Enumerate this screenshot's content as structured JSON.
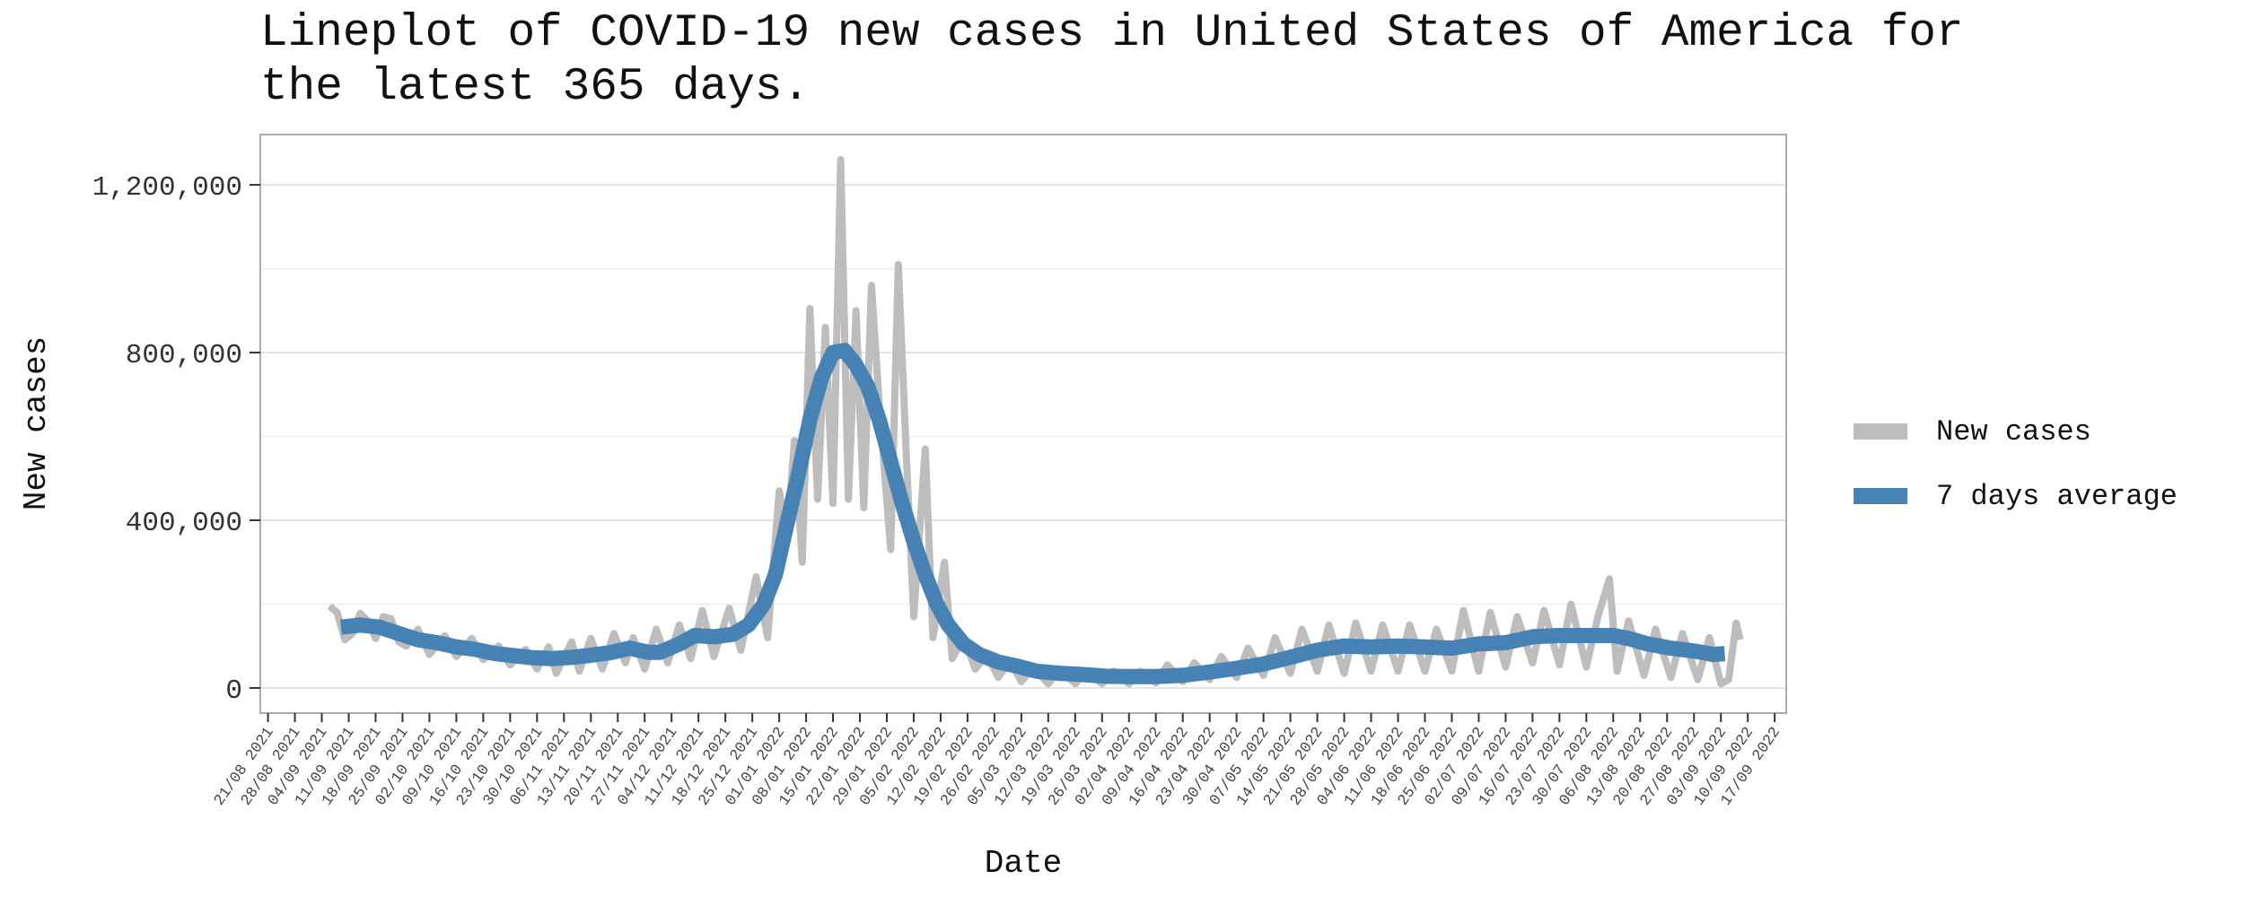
{
  "chart_data": {
    "type": "line",
    "title": "Lineplot of COVID-19 new cases in United States of America for the latest 365 days.",
    "xlabel": "Date",
    "ylabel": "New cases",
    "ylim": [
      -60000,
      1320000
    ],
    "yticks": [
      0,
      400000,
      800000,
      1200000
    ],
    "ytick_labels": [
      "0",
      "400,000",
      "800,000",
      "1,200,000"
    ],
    "xlim": [
      "2021-08-19",
      "2022-09-20"
    ],
    "xticks": [
      "2021-08-21",
      "2021-08-28",
      "2021-09-04",
      "2021-09-11",
      "2021-09-18",
      "2021-09-25",
      "2021-10-02",
      "2021-10-09",
      "2021-10-16",
      "2021-10-23",
      "2021-10-30",
      "2021-11-06",
      "2021-11-13",
      "2021-11-20",
      "2021-11-27",
      "2021-12-04",
      "2021-12-11",
      "2021-12-18",
      "2021-12-25",
      "2022-01-01",
      "2022-01-08",
      "2022-01-15",
      "2022-01-22",
      "2022-01-29",
      "2022-02-05",
      "2022-02-12",
      "2022-02-19",
      "2022-02-26",
      "2022-03-05",
      "2022-03-12",
      "2022-03-19",
      "2022-03-26",
      "2022-04-02",
      "2022-04-09",
      "2022-04-16",
      "2022-04-23",
      "2022-04-30",
      "2022-05-07",
      "2022-05-14",
      "2022-05-21",
      "2022-05-28",
      "2022-06-04",
      "2022-06-11",
      "2022-06-18",
      "2022-06-25",
      "2022-07-02",
      "2022-07-09",
      "2022-07-16",
      "2022-07-23",
      "2022-07-30",
      "2022-08-06",
      "2022-08-13",
      "2022-08-20",
      "2022-08-27",
      "2022-09-03",
      "2022-09-10",
      "2022-09-17"
    ],
    "xtick_labels": [
      "21/08 2021",
      "28/08 2021",
      "04/09 2021",
      "11/09 2021",
      "18/09 2021",
      "25/09 2021",
      "02/10 2021",
      "09/10 2021",
      "16/10 2021",
      "23/10 2021",
      "30/10 2021",
      "06/11 2021",
      "13/11 2021",
      "20/11 2021",
      "27/11 2021",
      "04/12 2021",
      "11/12 2021",
      "18/12 2021",
      "25/12 2021",
      "01/01 2022",
      "08/01 2022",
      "15/01 2022",
      "22/01 2022",
      "29/01 2022",
      "05/02 2022",
      "12/02 2022",
      "19/02 2022",
      "26/02 2022",
      "05/03 2022",
      "12/03 2022",
      "19/03 2022",
      "26/03 2022",
      "02/04 2022",
      "09/04 2022",
      "16/04 2022",
      "23/04 2022",
      "30/04 2022",
      "07/05 2022",
      "14/05 2022",
      "21/05 2022",
      "28/05 2022",
      "04/06 2022",
      "11/06 2022",
      "18/06 2022",
      "25/06 2022",
      "02/07 2022",
      "09/07 2022",
      "16/07 2022",
      "23/07 2022",
      "30/07 2022",
      "06/08 2022",
      "13/08 2022",
      "20/08 2022",
      "27/08 2022",
      "03/09 2022",
      "10/09 2022",
      "17/09 2022"
    ],
    "grid": true,
    "legend_position": "right",
    "series": [
      {
        "name": "New cases",
        "color": "#bdbdbd",
        "points": [
          [
            "2021-09-06",
            195000
          ],
          [
            "2021-09-08",
            180000
          ],
          [
            "2021-09-10",
            115000
          ],
          [
            "2021-09-12",
            130000
          ],
          [
            "2021-09-14",
            178000
          ],
          [
            "2021-09-16",
            160000
          ],
          [
            "2021-09-18",
            118000
          ],
          [
            "2021-09-20",
            170000
          ],
          [
            "2021-09-22",
            165000
          ],
          [
            "2021-09-24",
            110000
          ],
          [
            "2021-09-26",
            100000
          ],
          [
            "2021-09-29",
            140000
          ],
          [
            "2021-10-02",
            80000
          ],
          [
            "2021-10-06",
            125000
          ],
          [
            "2021-10-09",
            75000
          ],
          [
            "2021-10-13",
            118000
          ],
          [
            "2021-10-16",
            68000
          ],
          [
            "2021-10-20",
            100000
          ],
          [
            "2021-10-23",
            55000
          ],
          [
            "2021-10-27",
            92000
          ],
          [
            "2021-10-30",
            45000
          ],
          [
            "2021-11-02",
            98000
          ],
          [
            "2021-11-04",
            35000
          ],
          [
            "2021-11-08",
            110000
          ],
          [
            "2021-11-10",
            40000
          ],
          [
            "2021-11-13",
            118000
          ],
          [
            "2021-11-16",
            45000
          ],
          [
            "2021-11-19",
            130000
          ],
          [
            "2021-11-22",
            60000
          ],
          [
            "2021-11-24",
            120000
          ],
          [
            "2021-11-27",
            45000
          ],
          [
            "2021-11-30",
            140000
          ],
          [
            "2021-12-03",
            60000
          ],
          [
            "2021-12-06",
            150000
          ],
          [
            "2021-12-09",
            70000
          ],
          [
            "2021-12-12",
            185000
          ],
          [
            "2021-12-15",
            75000
          ],
          [
            "2021-12-19",
            190000
          ],
          [
            "2021-12-22",
            90000
          ],
          [
            "2021-12-26",
            265000
          ],
          [
            "2021-12-29",
            120000
          ],
          [
            "2022-01-01",
            470000
          ],
          [
            "2022-01-03",
            360000
          ],
          [
            "2022-01-05",
            590000
          ],
          [
            "2022-01-07",
            300000
          ],
          [
            "2022-01-09",
            905000
          ],
          [
            "2022-01-11",
            450000
          ],
          [
            "2022-01-13",
            860000
          ],
          [
            "2022-01-15",
            440000
          ],
          [
            "2022-01-17",
            1260000
          ],
          [
            "2022-01-19",
            450000
          ],
          [
            "2022-01-21",
            900000
          ],
          [
            "2022-01-23",
            430000
          ],
          [
            "2022-01-25",
            960000
          ],
          [
            "2022-01-27",
            680000
          ],
          [
            "2022-01-30",
            330000
          ],
          [
            "2022-02-01",
            1010000
          ],
          [
            "2022-02-03",
            570000
          ],
          [
            "2022-02-05",
            170000
          ],
          [
            "2022-02-08",
            570000
          ],
          [
            "2022-02-10",
            120000
          ],
          [
            "2022-02-13",
            300000
          ],
          [
            "2022-02-15",
            70000
          ],
          [
            "2022-02-18",
            120000
          ],
          [
            "2022-02-21",
            45000
          ],
          [
            "2022-02-24",
            80000
          ],
          [
            "2022-02-27",
            25000
          ],
          [
            "2022-03-02",
            65000
          ],
          [
            "2022-03-05",
            15000
          ],
          [
            "2022-03-08",
            50000
          ],
          [
            "2022-03-12",
            10000
          ],
          [
            "2022-03-15",
            45000
          ],
          [
            "2022-03-19",
            10000
          ],
          [
            "2022-03-22",
            40000
          ],
          [
            "2022-03-26",
            10000
          ],
          [
            "2022-03-29",
            40000
          ],
          [
            "2022-04-02",
            10000
          ],
          [
            "2022-04-05",
            40000
          ],
          [
            "2022-04-09",
            12000
          ],
          [
            "2022-04-12",
            55000
          ],
          [
            "2022-04-16",
            15000
          ],
          [
            "2022-04-19",
            60000
          ],
          [
            "2022-04-23",
            20000
          ],
          [
            "2022-04-26",
            75000
          ],
          [
            "2022-04-30",
            25000
          ],
          [
            "2022-05-03",
            95000
          ],
          [
            "2022-05-07",
            30000
          ],
          [
            "2022-05-10",
            120000
          ],
          [
            "2022-05-14",
            35000
          ],
          [
            "2022-05-17",
            140000
          ],
          [
            "2022-05-21",
            40000
          ],
          [
            "2022-05-24",
            150000
          ],
          [
            "2022-05-28",
            35000
          ],
          [
            "2022-05-31",
            155000
          ],
          [
            "2022-06-04",
            40000
          ],
          [
            "2022-06-07",
            150000
          ],
          [
            "2022-06-11",
            40000
          ],
          [
            "2022-06-14",
            150000
          ],
          [
            "2022-06-18",
            40000
          ],
          [
            "2022-06-21",
            140000
          ],
          [
            "2022-06-25",
            40000
          ],
          [
            "2022-06-28",
            185000
          ],
          [
            "2022-07-02",
            40000
          ],
          [
            "2022-07-05",
            180000
          ],
          [
            "2022-07-09",
            50000
          ],
          [
            "2022-07-12",
            170000
          ],
          [
            "2022-07-16",
            60000
          ],
          [
            "2022-07-19",
            185000
          ],
          [
            "2022-07-23",
            55000
          ],
          [
            "2022-07-26",
            200000
          ],
          [
            "2022-07-30",
            50000
          ],
          [
            "2022-08-02",
            170000
          ],
          [
            "2022-08-05",
            260000
          ],
          [
            "2022-08-07",
            40000
          ],
          [
            "2022-08-10",
            160000
          ],
          [
            "2022-08-14",
            30000
          ],
          [
            "2022-08-17",
            140000
          ],
          [
            "2022-08-21",
            25000
          ],
          [
            "2022-08-24",
            130000
          ],
          [
            "2022-08-28",
            20000
          ],
          [
            "2022-08-31",
            120000
          ],
          [
            "2022-09-03",
            10000
          ],
          [
            "2022-09-05",
            20000
          ],
          [
            "2022-09-07",
            155000
          ],
          [
            "2022-09-08",
            115000
          ]
        ]
      },
      {
        "name": "7 days average",
        "color": "#4682b4",
        "points": [
          [
            "2021-09-09",
            145000
          ],
          [
            "2021-09-14",
            150000
          ],
          [
            "2021-09-19",
            145000
          ],
          [
            "2021-09-24",
            130000
          ],
          [
            "2021-09-29",
            115000
          ],
          [
            "2021-10-04",
            108000
          ],
          [
            "2021-10-09",
            98000
          ],
          [
            "2021-10-14",
            92000
          ],
          [
            "2021-10-19",
            82000
          ],
          [
            "2021-10-24",
            77000
          ],
          [
            "2021-10-29",
            72000
          ],
          [
            "2021-11-03",
            70000
          ],
          [
            "2021-11-08",
            73000
          ],
          [
            "2021-11-13",
            78000
          ],
          [
            "2021-11-18",
            84000
          ],
          [
            "2021-11-23",
            95000
          ],
          [
            "2021-11-28",
            85000
          ],
          [
            "2021-12-01",
            85000
          ],
          [
            "2021-12-06",
            105000
          ],
          [
            "2021-12-10",
            125000
          ],
          [
            "2021-12-15",
            122000
          ],
          [
            "2021-12-20",
            128000
          ],
          [
            "2021-12-24",
            150000
          ],
          [
            "2021-12-28",
            200000
          ],
          [
            "2021-12-31",
            270000
          ],
          [
            "2022-01-03",
            390000
          ],
          [
            "2022-01-06",
            510000
          ],
          [
            "2022-01-09",
            640000
          ],
          [
            "2022-01-12",
            740000
          ],
          [
            "2022-01-15",
            800000
          ],
          [
            "2022-01-18",
            805000
          ],
          [
            "2022-01-21",
            770000
          ],
          [
            "2022-01-24",
            720000
          ],
          [
            "2022-01-27",
            640000
          ],
          [
            "2022-01-30",
            540000
          ],
          [
            "2022-02-02",
            440000
          ],
          [
            "2022-02-05",
            350000
          ],
          [
            "2022-02-08",
            270000
          ],
          [
            "2022-02-11",
            200000
          ],
          [
            "2022-02-14",
            150000
          ],
          [
            "2022-02-18",
            105000
          ],
          [
            "2022-02-22",
            80000
          ],
          [
            "2022-02-27",
            62000
          ],
          [
            "2022-03-04",
            52000
          ],
          [
            "2022-03-09",
            40000
          ],
          [
            "2022-03-15",
            35000
          ],
          [
            "2022-03-21",
            32000
          ],
          [
            "2022-03-27",
            28000
          ],
          [
            "2022-04-02",
            27000
          ],
          [
            "2022-04-09",
            27000
          ],
          [
            "2022-04-16",
            30000
          ],
          [
            "2022-04-23",
            38000
          ],
          [
            "2022-04-30",
            47000
          ],
          [
            "2022-05-07",
            57000
          ],
          [
            "2022-05-14",
            73000
          ],
          [
            "2022-05-21",
            90000
          ],
          [
            "2022-05-28",
            100000
          ],
          [
            "2022-06-04",
            98000
          ],
          [
            "2022-06-11",
            100000
          ],
          [
            "2022-06-18",
            98000
          ],
          [
            "2022-06-25",
            95000
          ],
          [
            "2022-07-02",
            105000
          ],
          [
            "2022-07-09",
            108000
          ],
          [
            "2022-07-16",
            122000
          ],
          [
            "2022-07-23",
            125000
          ],
          [
            "2022-07-30",
            125000
          ],
          [
            "2022-08-06",
            125000
          ],
          [
            "2022-08-10",
            118000
          ],
          [
            "2022-08-15",
            105000
          ],
          [
            "2022-08-21",
            95000
          ],
          [
            "2022-08-27",
            88000
          ],
          [
            "2022-09-01",
            80000
          ],
          [
            "2022-09-04",
            82000
          ]
        ]
      }
    ]
  }
}
